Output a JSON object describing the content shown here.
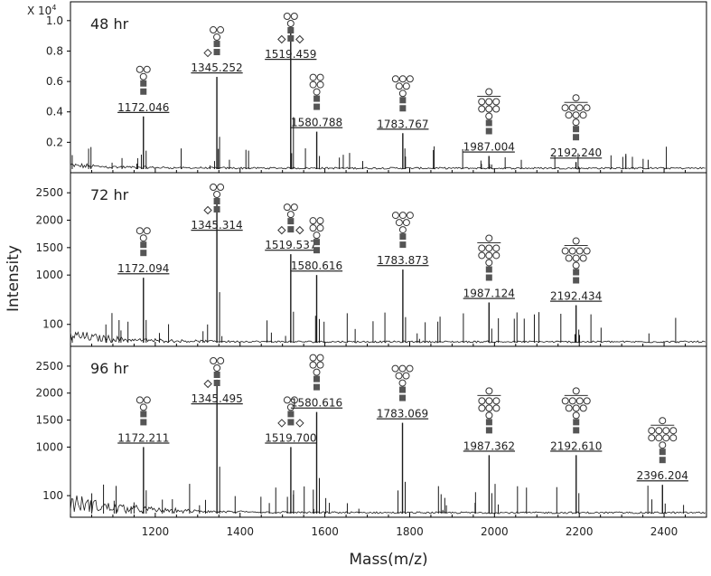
{
  "figure": {
    "y_axis_label": "Intensity",
    "x_axis_label": "Mass(m/z)",
    "scale_note": "X 10",
    "scale_exponent": "4"
  },
  "chart_data": {
    "type": "mass_spectrum",
    "xlabel": "Mass(m/z)",
    "ylabel": "Intensity",
    "xlim": [
      1000,
      2500
    ],
    "x_ticks": [
      "1200",
      "1400",
      "1600",
      "1800",
      "2000",
      "2200",
      "2400"
    ],
    "colors": {
      "trace": "#1a1a1a",
      "glycan_square": "#555555",
      "frame": "#000000"
    },
    "panels": [
      {
        "label": "48 hr",
        "y_ticks": [
          "0.2",
          "0.4",
          "0.6",
          "0.8",
          "1.0"
        ],
        "y_tick_values": [
          0.2,
          0.4,
          0.6,
          0.8,
          1.0
        ],
        "ylim": [
          0,
          1.1
        ],
        "peaks": [
          {
            "mz": 1172.046,
            "intensity": 0.37,
            "label": "1172.046",
            "glycan": "M3"
          },
          {
            "mz": 1345.252,
            "intensity": 0.63,
            "label": "1345.252",
            "glycan": "M3F"
          },
          {
            "mz": 1519.459,
            "intensity": 1.0,
            "label": "1519.459",
            "glycan": "M3F2"
          },
          {
            "mz": 1580.788,
            "intensity": 0.27,
            "label": "1580.788",
            "glycan": "M5"
          },
          {
            "mz": 1783.767,
            "intensity": 0.26,
            "label": "1783.767",
            "glycan": "M6"
          },
          {
            "mz": 1987.004,
            "intensity": 0.11,
            "label": "1987.004",
            "glycan": "M7"
          },
          {
            "mz": 2192.24,
            "intensity": 0.07,
            "label": "2192.240",
            "glycan": "M8"
          }
        ]
      },
      {
        "label": "72 hr",
        "y_ticks": [
          "100",
          "1000",
          "1500",
          "2000",
          "2500"
        ],
        "y_tick_values": [
          100,
          1000,
          1500,
          2000,
          2500
        ],
        "ylim": [
          -300,
          2800
        ],
        "peaks": [
          {
            "mz": 1172.094,
            "intensity": 950,
            "label": "1172.094",
            "glycan": "M3"
          },
          {
            "mz": 1345.314,
            "intensity": 2400,
            "label": "1345.314",
            "glycan": "M3F"
          },
          {
            "mz": 1519.537,
            "intensity": 1380,
            "label": "1519.537",
            "glycan": "M3F2"
          },
          {
            "mz": 1580.616,
            "intensity": 1000,
            "label": "1580.616",
            "glycan": "M5"
          },
          {
            "mz": 1783.873,
            "intensity": 1100,
            "label": "1783.873",
            "glycan": "M6"
          },
          {
            "mz": 1987.124,
            "intensity": 500,
            "label": "1987.124",
            "glycan": "M7"
          },
          {
            "mz": 2192.434,
            "intensity": 450,
            "label": "2192.434",
            "glycan": "M8"
          }
        ]
      },
      {
        "label": "96 hr",
        "y_ticks": [
          "100",
          "1000",
          "1500",
          "2000",
          "2500"
        ],
        "y_tick_values": [
          100,
          1000,
          1500,
          2000,
          2500
        ],
        "ylim": [
          -300,
          2800
        ],
        "peaks": [
          {
            "mz": 1172.211,
            "intensity": 1000,
            "label": "1172.211",
            "glycan": "M3"
          },
          {
            "mz": 1345.495,
            "intensity": 2250,
            "label": "1345.495",
            "glycan": "M3F"
          },
          {
            "mz": 1519.7,
            "intensity": 1000,
            "label": "1519.700",
            "glycan": "M3F2"
          },
          {
            "mz": 1580.616,
            "intensity": 1650,
            "label": "1580.616",
            "glycan": "M5"
          },
          {
            "mz": 1783.069,
            "intensity": 1450,
            "label": "1783.069",
            "glycan": "M6"
          },
          {
            "mz": 1987.362,
            "intensity": 850,
            "label": "1987.362",
            "glycan": "M7"
          },
          {
            "mz": 2192.61,
            "intensity": 850,
            "label": "2192.610",
            "glycan": "M8"
          },
          {
            "mz": 2396.204,
            "intensity": 300,
            "label": "2396.204",
            "glycan": "M9"
          }
        ]
      }
    ]
  }
}
